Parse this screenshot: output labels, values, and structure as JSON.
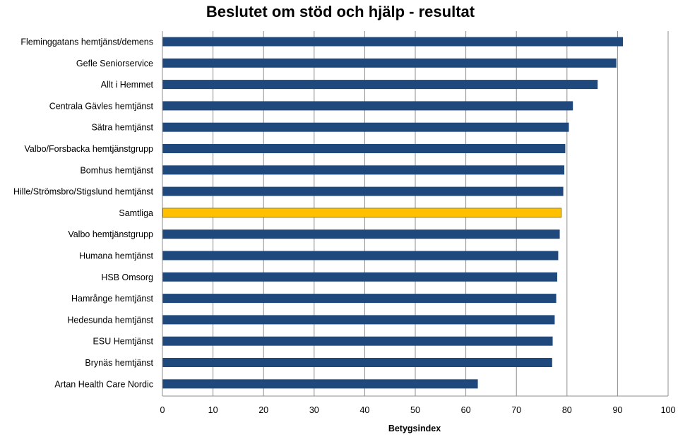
{
  "chart_data": {
    "type": "bar",
    "orientation": "horizontal",
    "title": "Beslutet om stöd och hjälp - resultat",
    "xlabel": "Betygsindex",
    "ylabel": "",
    "xlim": [
      0,
      100
    ],
    "xticks": [
      0,
      10,
      20,
      30,
      40,
      50,
      60,
      70,
      80,
      90,
      100
    ],
    "grid": true,
    "legend": "none",
    "colors": {
      "default": "#1f497d",
      "highlight": "#ffc000"
    },
    "categories": [
      "Fleminggatans hemtjänst/demens",
      "Gefle Seniorservice",
      "Allt i Hemmet",
      "Centrala Gävles hemtjänst",
      "Sätra hemtjänst",
      "Valbo/Forsbacka hemtjänstgrupp",
      "Bomhus hemtjänst",
      "Hille/Strömsbro/Stigslund hemtjänst",
      "Samtliga",
      "Valbo hemtjänstgrupp",
      "Humana hemtjänst",
      "HSB Omsorg",
      "Hamrånge hemtjänst",
      "Hedesunda hemtjänst",
      "ESU Hemtjänst",
      "Brynäs hemtjänst",
      "Artan Health Care Nordic"
    ],
    "values": [
      91,
      89.7,
      86,
      81.1,
      80.3,
      79.6,
      79.4,
      79.2,
      78.8,
      78.5,
      78.2,
      78.0,
      77.8,
      77.5,
      77.1,
      77.0,
      62.3
    ],
    "highlight_category": "Samtliga"
  }
}
